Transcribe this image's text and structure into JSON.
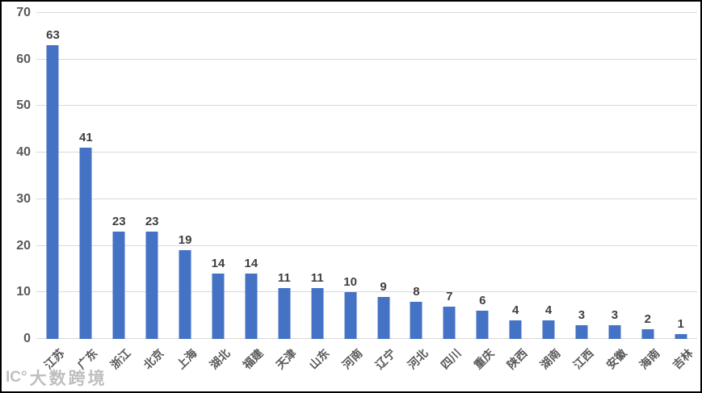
{
  "chart_data": {
    "type": "bar",
    "title": "",
    "xlabel": "",
    "ylabel": "",
    "categories": [
      "江苏",
      "广东",
      "浙江",
      "北京",
      "上海",
      "湖北",
      "福建",
      "天津",
      "山东",
      "河南",
      "辽宁",
      "河北",
      "四川",
      "重庆",
      "陕西",
      "湖南",
      "江西",
      "安徽",
      "海南",
      "吉林"
    ],
    "values": [
      63,
      41,
      23,
      23,
      19,
      14,
      14,
      11,
      11,
      10,
      9,
      8,
      7,
      6,
      4,
      4,
      3,
      3,
      2,
      1
    ],
    "ylim": [
      0,
      70
    ],
    "yticks": [
      0,
      10,
      20,
      30,
      40,
      50,
      60,
      70
    ],
    "grid": true,
    "legend": null,
    "bar_color": "#4472c4",
    "gridline_color": "#d9d9d9",
    "value_label_color": "#3f3f3f",
    "ytick_label_color": "#595959",
    "xtick_label_color": "#595959"
  },
  "watermark": {
    "icon_text": "IC°",
    "text": "大数跨境"
  }
}
